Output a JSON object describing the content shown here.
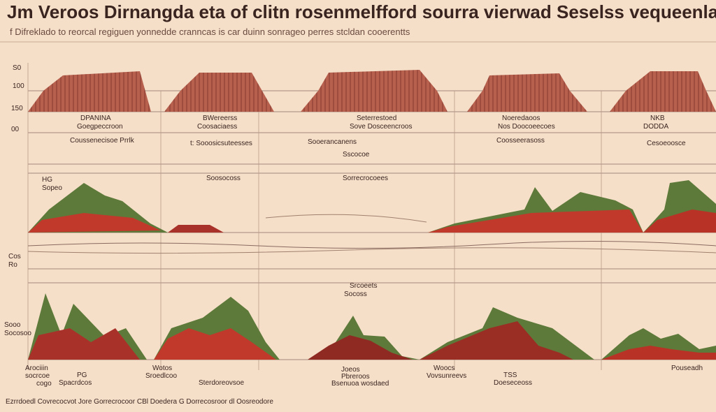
{
  "header": {
    "title": "Jm Veroos Dirnangda eta of clitn rosenmelfford sourra vierwad Seselss vequeenlat sclima",
    "subtitle": "f Difreklado to reorcal regiguen yonnedde cranncas is car duinn sonrageo perres stcldan cooerentts"
  },
  "axis_labels": [
    "S0",
    "100",
    "150",
    "00",
    "HG",
    "Sopeo",
    "Cos",
    "Ro",
    "Sooo",
    "Socosoo"
  ],
  "panels": [
    {
      "title": "DPANINA",
      "subtitle": "Goegpeccroon",
      "note": "Coussenecisoe Prrlk"
    },
    {
      "title": "BWereerss",
      "subtitle": "Coosaciaess",
      "note": "t: Sooosicsuteesses"
    },
    {
      "title": "Seterrestoed",
      "subtitle": "Sove Dosceencroos",
      "note": "Sooerancanens"
    },
    {
      "title": "Noeredaoos",
      "subtitle": "Nos Doocoeecoes",
      "note": "Coosseerasoss"
    },
    {
      "title": "NKB",
      "subtitle": "DODDA",
      "note": "Cesoeoosce"
    }
  ],
  "annotations": [
    "Soosocoss",
    "Sscocoe",
    "Sorrecrocoees",
    "Srcoeets",
    "Socoss"
  ],
  "bottom_labels": [
    {
      "title": "Arociiin",
      "lines": [
        "socrcoe",
        "cogo"
      ]
    },
    {
      "title": "Wotos",
      "lines": [
        "Sroedlcoo"
      ]
    },
    {
      "title": "PG",
      "lines": [
        "Spacrdcos",
        "Sterdoreovsoe"
      ]
    },
    {
      "title": "Joeos",
      "lines": [
        "Pbreroos",
        "Bsenuoa wosdaed"
      ]
    },
    {
      "title": "Woocs",
      "lines": [
        "Vovsunreevs"
      ]
    },
    {
      "title": "TSS",
      "lines": [
        "Doeseceoss"
      ]
    },
    {
      "title": "Pouseadh",
      "lines": []
    }
  ],
  "footer": "Ezrrdoedl Covrecocvot Jore Gorrecrocoor CBl Doedera G Dorrecosroor dl Oosreodore"
}
